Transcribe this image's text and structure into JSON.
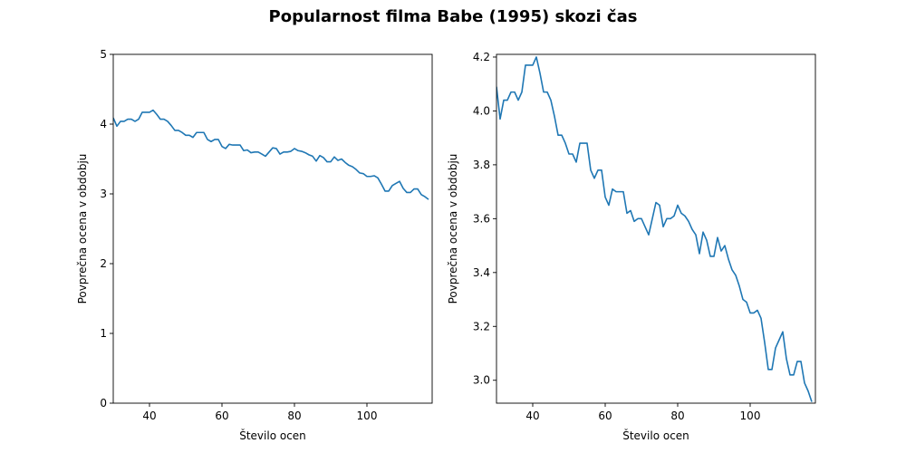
{
  "title": "Popularnost filma Babe (1995) skozi čas",
  "colors": {
    "line": "#1f77b4",
    "axes": "#000000",
    "background": "#ffffff"
  },
  "chart_data": [
    {
      "type": "line",
      "xlabel": "Število ocen",
      "ylabel": "Povprečna ocena v obdobju",
      "xlim": [
        30,
        118
      ],
      "ylim": [
        0,
        5
      ],
      "xticks": [
        40,
        60,
        80,
        100
      ],
      "xtick_labels": [
        "40",
        "60",
        "80",
        "100"
      ],
      "yticks": [
        0,
        1,
        2,
        3,
        4,
        5
      ],
      "ytick_labels": [
        "0",
        "1",
        "2",
        "3",
        "4",
        "5"
      ],
      "grid": false,
      "series": [
        {
          "x": [
            30,
            31,
            32,
            33,
            34,
            35,
            36,
            37,
            38,
            39,
            40,
            41,
            42,
            43,
            44,
            45,
            46,
            47,
            48,
            49,
            50,
            51,
            52,
            53,
            54,
            55,
            56,
            57,
            58,
            59,
            60,
            61,
            62,
            63,
            64,
            65,
            66,
            67,
            68,
            69,
            70,
            71,
            72,
            73,
            74,
            75,
            76,
            77,
            78,
            79,
            80,
            81,
            82,
            83,
            84,
            85,
            86,
            87,
            88,
            89,
            90,
            91,
            92,
            93,
            94,
            95,
            96,
            97,
            98,
            99,
            100,
            101,
            102,
            103,
            104,
            105,
            106,
            107,
            108,
            109,
            110,
            111,
            112,
            113,
            114,
            115,
            116,
            117
          ],
          "y": [
            4.09,
            3.97,
            4.04,
            4.04,
            4.07,
            4.07,
            4.04,
            4.07,
            4.17,
            4.17,
            4.17,
            4.2,
            4.14,
            4.07,
            4.07,
            4.04,
            3.98,
            3.91,
            3.91,
            3.88,
            3.84,
            3.84,
            3.81,
            3.88,
            3.88,
            3.88,
            3.78,
            3.75,
            3.78,
            3.78,
            3.68,
            3.65,
            3.71,
            3.7,
            3.7,
            3.7,
            3.62,
            3.63,
            3.59,
            3.6,
            3.6,
            3.57,
            3.54,
            3.6,
            3.66,
            3.65,
            3.57,
            3.6,
            3.6,
            3.61,
            3.65,
            3.62,
            3.61,
            3.59,
            3.56,
            3.54,
            3.47,
            3.55,
            3.52,
            3.46,
            3.46,
            3.53,
            3.48,
            3.5,
            3.45,
            3.41,
            3.39,
            3.35,
            3.3,
            3.29,
            3.25,
            3.25,
            3.26,
            3.23,
            3.14,
            3.04,
            3.04,
            3.12,
            3.15,
            3.18,
            3.08,
            3.02,
            3.02,
            3.07,
            3.07,
            2.99,
            2.96,
            2.92
          ]
        }
      ]
    },
    {
      "type": "line",
      "xlabel": "Število ocen",
      "ylabel": "Povprečna ocena v obdobju",
      "xlim": [
        30,
        118
      ],
      "ylim": [
        2.915,
        4.21
      ],
      "xticks": [
        40,
        60,
        80,
        100
      ],
      "xtick_labels": [
        "40",
        "60",
        "80",
        "100"
      ],
      "yticks": [
        3.0,
        3.2,
        3.4,
        3.6,
        3.8,
        4.0,
        4.2
      ],
      "ytick_labels": [
        "3.0",
        "3.2",
        "3.4",
        "3.6",
        "3.8",
        "4.0",
        "4.2"
      ],
      "grid": false,
      "series": [
        {
          "x": [
            30,
            31,
            32,
            33,
            34,
            35,
            36,
            37,
            38,
            39,
            40,
            41,
            42,
            43,
            44,
            45,
            46,
            47,
            48,
            49,
            50,
            51,
            52,
            53,
            54,
            55,
            56,
            57,
            58,
            59,
            60,
            61,
            62,
            63,
            64,
            65,
            66,
            67,
            68,
            69,
            70,
            71,
            72,
            73,
            74,
            75,
            76,
            77,
            78,
            79,
            80,
            81,
            82,
            83,
            84,
            85,
            86,
            87,
            88,
            89,
            90,
            91,
            92,
            93,
            94,
            95,
            96,
            97,
            98,
            99,
            100,
            101,
            102,
            103,
            104,
            105,
            106,
            107,
            108,
            109,
            110,
            111,
            112,
            113,
            114,
            115,
            116,
            117
          ],
          "y": [
            4.09,
            3.97,
            4.04,
            4.04,
            4.07,
            4.07,
            4.04,
            4.07,
            4.17,
            4.17,
            4.17,
            4.2,
            4.14,
            4.07,
            4.07,
            4.04,
            3.98,
            3.91,
            3.91,
            3.88,
            3.84,
            3.84,
            3.81,
            3.88,
            3.88,
            3.88,
            3.78,
            3.75,
            3.78,
            3.78,
            3.68,
            3.65,
            3.71,
            3.7,
            3.7,
            3.7,
            3.62,
            3.63,
            3.59,
            3.6,
            3.6,
            3.57,
            3.54,
            3.6,
            3.66,
            3.65,
            3.57,
            3.6,
            3.6,
            3.61,
            3.65,
            3.62,
            3.61,
            3.59,
            3.56,
            3.54,
            3.47,
            3.55,
            3.52,
            3.46,
            3.46,
            3.53,
            3.48,
            3.5,
            3.45,
            3.41,
            3.39,
            3.35,
            3.3,
            3.29,
            3.25,
            3.25,
            3.26,
            3.23,
            3.14,
            3.04,
            3.04,
            3.12,
            3.15,
            3.18,
            3.08,
            3.02,
            3.02,
            3.07,
            3.07,
            2.99,
            2.96,
            2.92
          ]
        }
      ]
    }
  ]
}
